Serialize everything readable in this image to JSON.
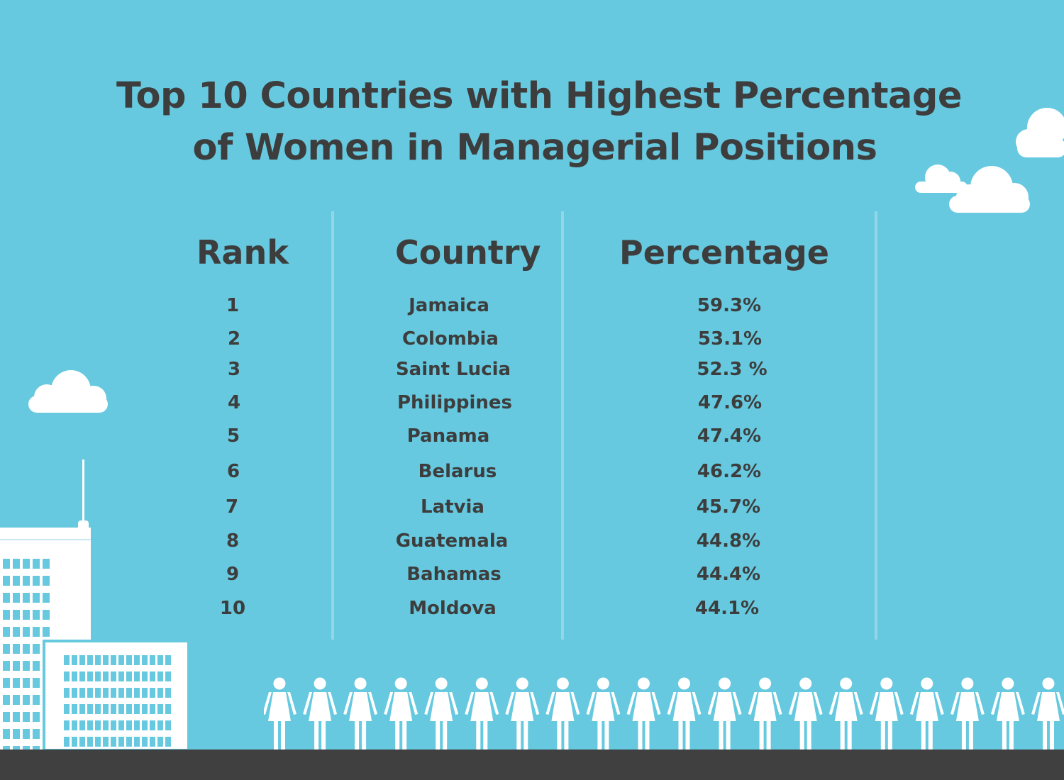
{
  "chart_data": {
    "type": "table",
    "title_lines": [
      "Top 10 Countries with Highest Percentage",
      "of Women in Managerial Positions"
    ],
    "columns": [
      "Rank",
      "Country",
      "Percentage"
    ],
    "rows": [
      {
        "rank": "1",
        "country": "Jamaica",
        "percentage": "59.3%"
      },
      {
        "rank": "2",
        "country": "Colombia",
        "percentage": "53.1%"
      },
      {
        "rank": "3",
        "country": "Saint Lucia",
        "percentage": "52.3 %"
      },
      {
        "rank": "4",
        "country": "Philippines",
        "percentage": "47.6%"
      },
      {
        "rank": "5",
        "country": "Panama",
        "percentage": "47.4%"
      },
      {
        "rank": "6",
        "country": "Belarus",
        "percentage": "46.2%"
      },
      {
        "rank": "7",
        "country": "Latvia",
        "percentage": "45.7%"
      },
      {
        "rank": "8",
        "country": "Guatemala",
        "percentage": "44.8%"
      },
      {
        "rank": "9",
        "country": "Bahamas",
        "percentage": "44.4%"
      },
      {
        "rank": "10",
        "country": "Moldova",
        "percentage": "44.1%"
      }
    ]
  },
  "colors": {
    "background": "#66c9df",
    "text": "#3d3d3d",
    "divider": "#94d6e8",
    "ground": "#404040",
    "illustration": "#ffffff"
  },
  "illustration": {
    "icons": [
      "cloud-icon",
      "office-building-icon",
      "woman-figure-icon"
    ],
    "woman_figure_count": 20
  }
}
